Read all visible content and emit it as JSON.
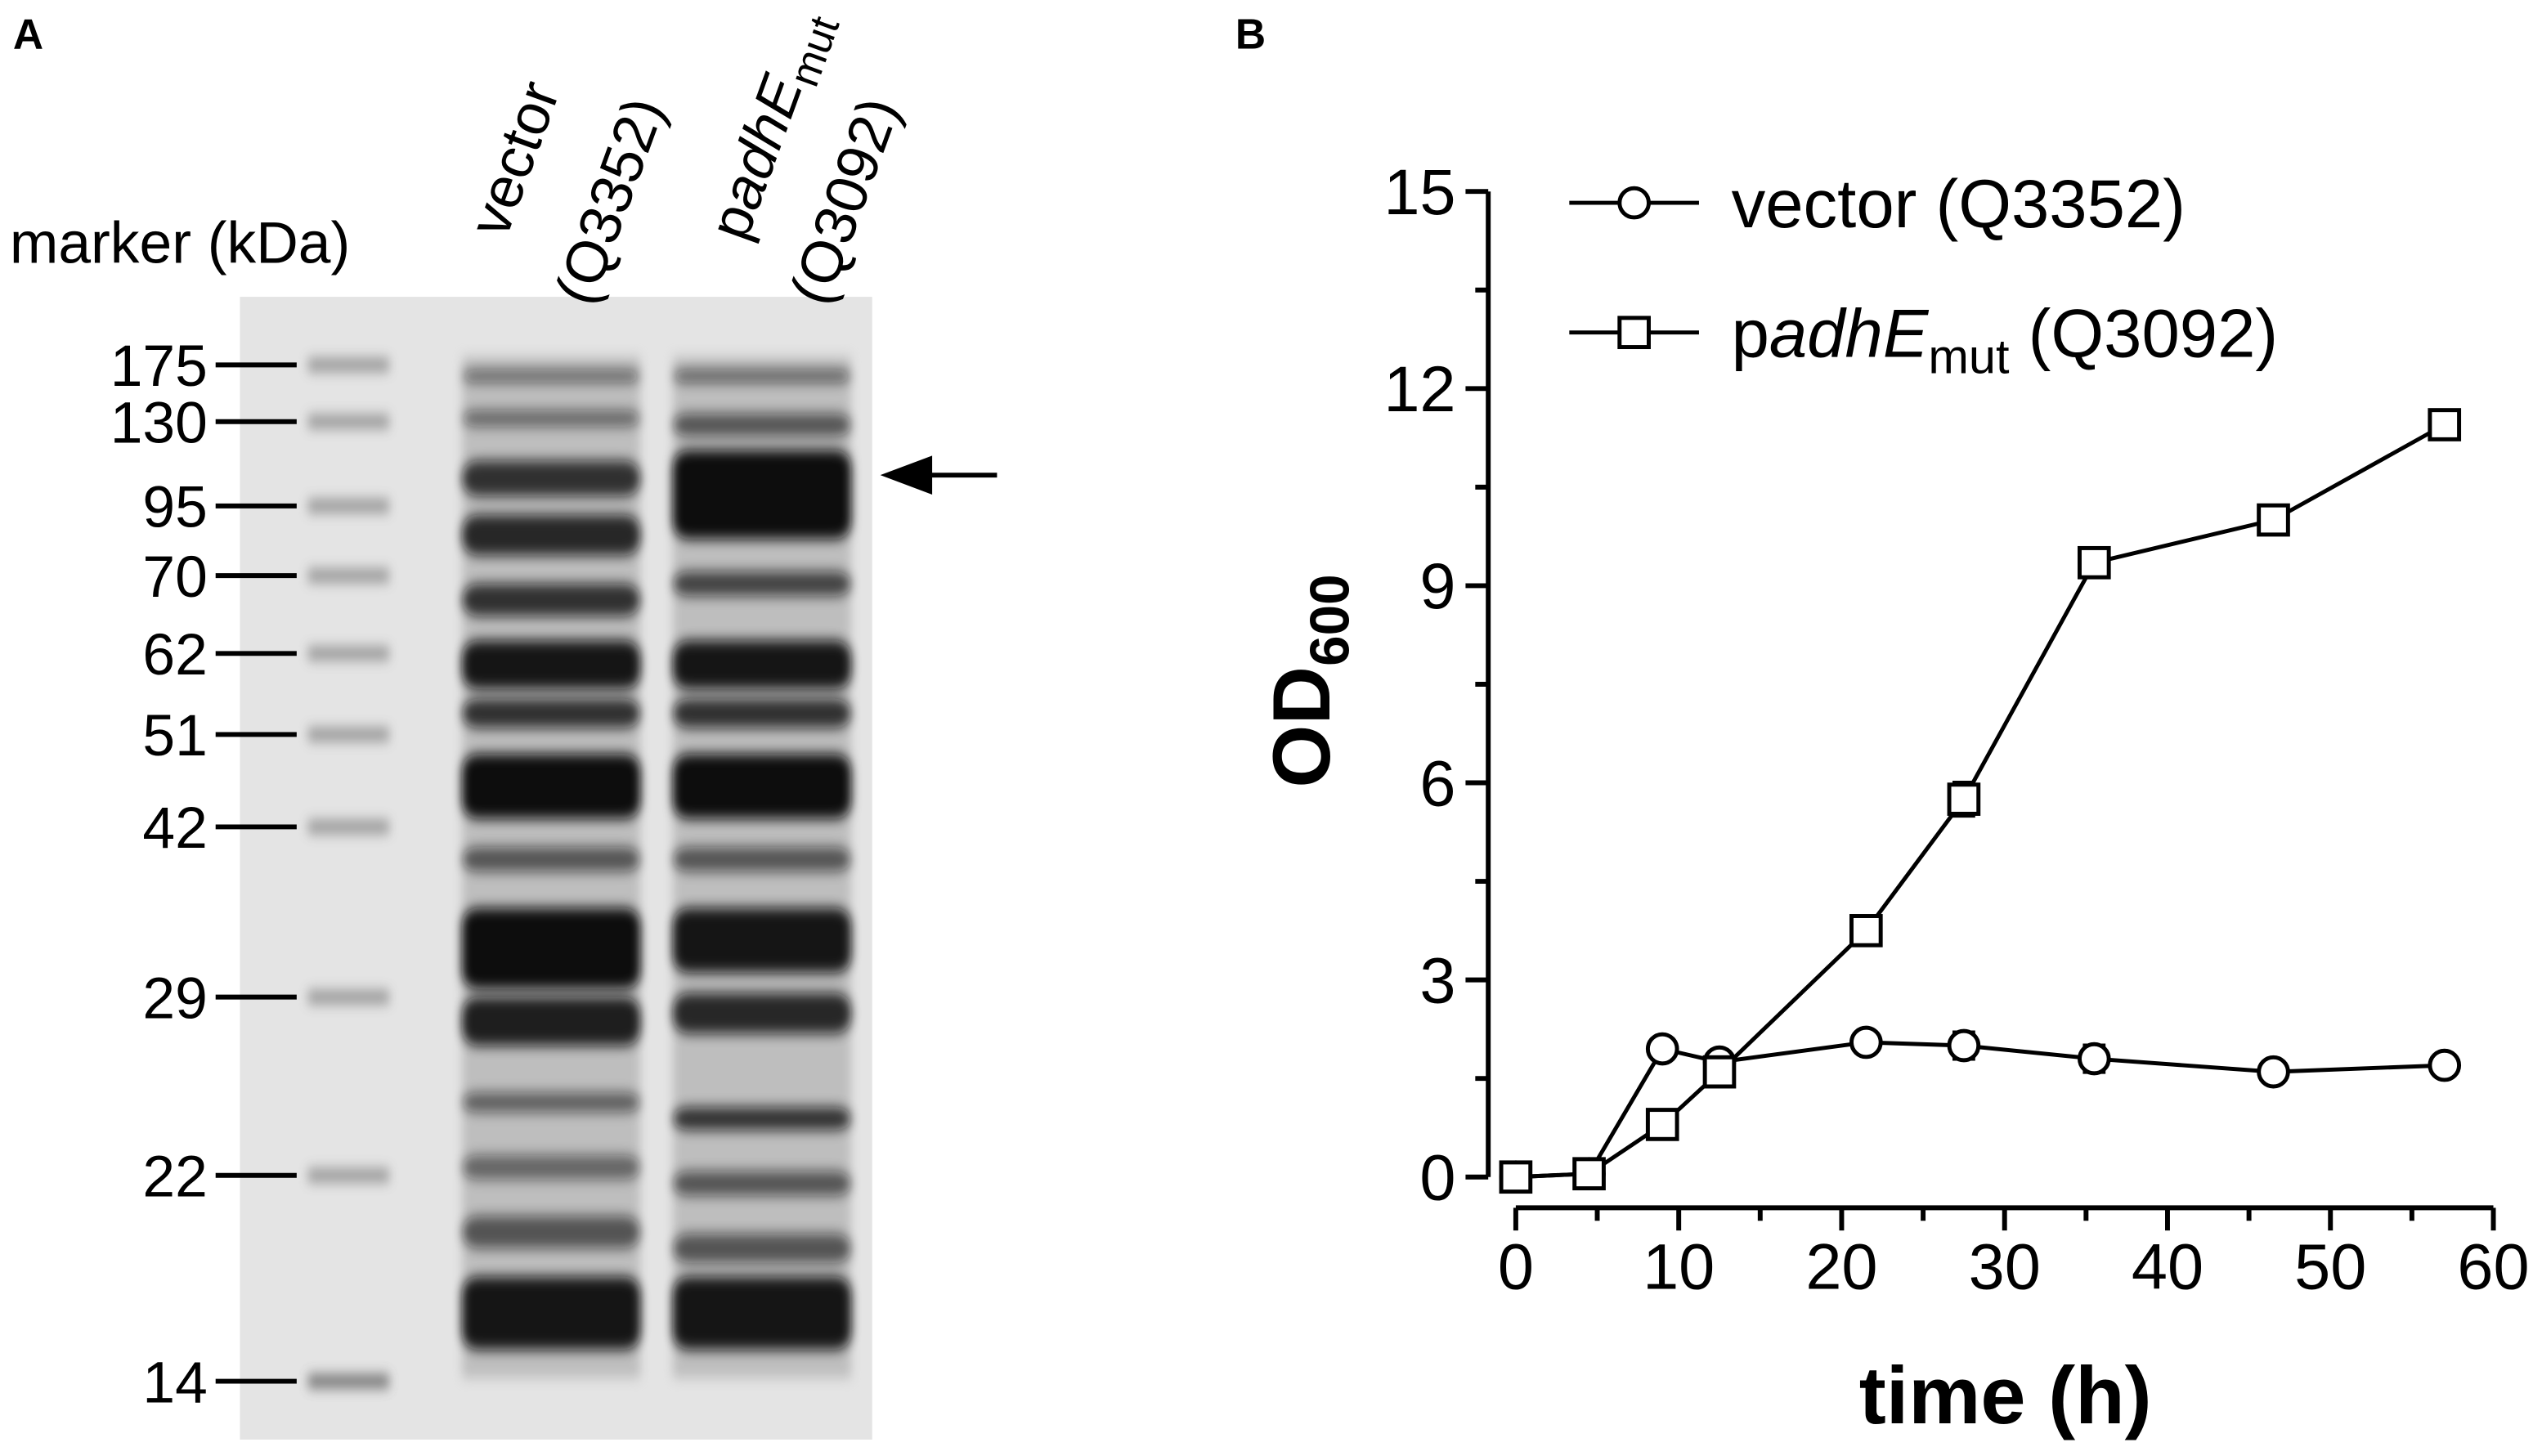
{
  "panel_labels": [
    "A",
    "B"
  ],
  "gel": {
    "marker_title": "marker (kDa)",
    "marker_labels": [
      "175",
      "130",
      "95",
      "70",
      "62",
      "51",
      "42",
      "29",
      "22",
      "14"
    ],
    "lanes": [
      [
        "vector",
        "(Q3352)"
      ],
      [
        "p",
        "adhE",
        "mut",
        "(Q3092)"
      ]
    ]
  },
  "chart_data": {
    "type": "line",
    "x_label": "time (h)",
    "y_label": [
      "OD",
      "600"
    ],
    "x": [
      0,
      4.5,
      9,
      12.5,
      21.5,
      27.5,
      35.5,
      46.5,
      57
    ],
    "series": [
      {
        "name": [
          "vector (Q3352)"
        ],
        "marker": "circle",
        "color": "#000000",
        "values": [
          0,
          0.05,
          1.95,
          1.75,
          2.05,
          2.0,
          1.8,
          1.6,
          1.7
        ],
        "errors": [
          0.02,
          0.02,
          0.05,
          0.05,
          0.05,
          0.2,
          0.2,
          0.05,
          0.05
        ]
      },
      {
        "name": [
          "p",
          "adhE",
          "mut",
          " (Q3092)"
        ],
        "marker": "square",
        "color": "#000000",
        "values": [
          0,
          0.05,
          0.8,
          1.6,
          3.75,
          5.75,
          9.35,
          10.0,
          11.45
        ],
        "errors": [
          0.02,
          0.02,
          0.05,
          0.05,
          0.05,
          0.25,
          0.1,
          0.1,
          0.1
        ]
      }
    ],
    "xlim": [
      0,
      60
    ],
    "xticks": [
      0,
      10,
      20,
      30,
      40,
      50,
      60
    ],
    "x_minor_ticks": [
      5,
      15,
      25,
      35,
      45,
      55
    ],
    "ylim": [
      0,
      15
    ],
    "yticks": [
      0,
      3,
      6,
      9,
      12,
      15
    ],
    "y_minor_ticks": [
      1.5,
      4.5,
      7.5,
      10.5,
      13.5
    ]
  }
}
